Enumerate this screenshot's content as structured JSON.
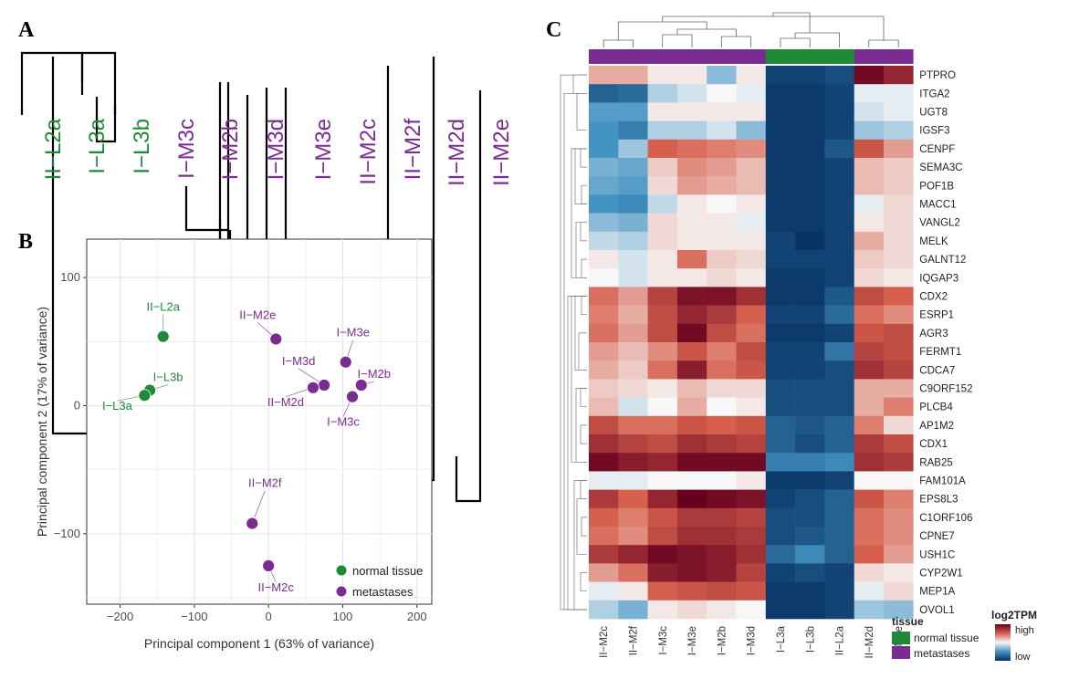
{
  "panels": {
    "a": "A",
    "b": "B",
    "c": "C"
  },
  "colors": {
    "normal": "#1e8a38",
    "metastases": "#7b2c90",
    "link": "#000000",
    "grid": "#e6e6e6",
    "axis_text": "#4d4d4d"
  },
  "chart_data": [
    {
      "id": "dendrogram_A",
      "type": "dendrogram",
      "leaves": [
        "II−L2a",
        "I−L3a",
        "I−L3b",
        "I−M3c",
        "I−M2b",
        "I−M3d",
        "I−M3e",
        "II−M2c",
        "II−M2f",
        "II−M2d",
        "II−M2e"
      ],
      "leaf_groups": [
        "normal",
        "normal",
        "normal",
        "metastases",
        "metastases",
        "metastases",
        "metastases",
        "metastases",
        "metastases",
        "metastases",
        "metastases"
      ]
    },
    {
      "id": "pca_B",
      "type": "scatter",
      "xlabel": "Principal component 1 (63% of variance)",
      "ylabel": "Principal component 2 (17% of variance)",
      "xlim": [
        -245,
        220
      ],
      "ylim": [
        -155,
        130
      ],
      "xticks": [
        -200,
        -100,
        0,
        100,
        200
      ],
      "yticks": [
        -100,
        0,
        100
      ],
      "points": [
        {
          "label": "II−L2a",
          "x": -142,
          "y": 54,
          "group": "normal"
        },
        {
          "label": "I−L3b",
          "x": -160,
          "y": 12,
          "group": "normal"
        },
        {
          "label": "I−L3a",
          "x": -167,
          "y": 8,
          "group": "normal"
        },
        {
          "label": "II−M2e",
          "x": 10,
          "y": 52,
          "group": "metastases"
        },
        {
          "label": "I−M3e",
          "x": 104,
          "y": 34,
          "group": "metastases"
        },
        {
          "label": "I−M3d",
          "x": 75,
          "y": 16,
          "group": "metastases"
        },
        {
          "label": "II−M2d",
          "x": 60,
          "y": 14,
          "group": "metastases"
        },
        {
          "label": "I−M2b",
          "x": 125,
          "y": 16,
          "group": "metastases"
        },
        {
          "label": "I−M3c",
          "x": 113,
          "y": 7,
          "group": "metastases"
        },
        {
          "label": "II−M2f",
          "x": -22,
          "y": -92,
          "group": "metastases"
        },
        {
          "label": "II−M2c",
          "x": 0,
          "y": -125,
          "group": "metastases"
        }
      ],
      "legend": {
        "position": "bottom-right",
        "entries": [
          {
            "label": "normal tissue",
            "group": "normal"
          },
          {
            "label": "metastases",
            "group": "metastases"
          }
        ]
      }
    },
    {
      "id": "heatmap_C",
      "type": "heatmap",
      "columns": [
        "II−M2c",
        "II−M2f",
        "I−M3c",
        "I−M3e",
        "I−M2b",
        "I−M3d",
        "I−L3a",
        "I−L3b",
        "II−L2a",
        "II−M2d",
        "II−M2e"
      ],
      "column_groups": [
        "metastases",
        "metastases",
        "metastases",
        "metastases",
        "metastases",
        "metastases",
        "normal",
        "normal",
        "normal",
        "metastases",
        "metastases"
      ],
      "rows": [
        "PTPRO",
        "ITGA2",
        "UGT8",
        "IGSF3",
        "CENPF",
        "SEMA3C",
        "POF1B",
        "MACC1",
        "VANGL2",
        "MELK",
        "GALNT12",
        "IQGAP3",
        "CDX2",
        "ESRP1",
        "AGR3",
        "FERMT1",
        "CDCA7",
        "C9ORF152",
        "PLCB4",
        "AP1M2",
        "CDX1",
        "RAB25",
        "FAM101A",
        "EPS8L3",
        "C1ORF106",
        "CPNE7",
        "USH1C",
        "CYP2W1",
        "MEP1A",
        "OVOL1"
      ],
      "scale": "relative log2TPM: -1 = low (blue), 0 = neutral (white), 1 = high (red)",
      "values": [
        [
          0.25,
          0.25,
          0.05,
          0.05,
          -0.3,
          0.05,
          -0.9,
          -0.9,
          -0.85,
          0.95,
          0.8
        ],
        [
          -0.75,
          -0.7,
          -0.2,
          -0.1,
          0.0,
          -0.05,
          -0.95,
          -0.95,
          -0.9,
          -0.05,
          -0.05
        ],
        [
          -0.45,
          -0.45,
          0.05,
          0.05,
          0.05,
          0.05,
          -0.95,
          -0.95,
          -0.9,
          -0.1,
          -0.05
        ],
        [
          -0.5,
          -0.6,
          -0.2,
          -0.2,
          -0.1,
          -0.3,
          -0.95,
          -0.95,
          -0.9,
          -0.25,
          -0.2
        ],
        [
          -0.5,
          -0.25,
          0.5,
          0.45,
          0.4,
          0.35,
          -0.95,
          -0.95,
          -0.8,
          0.55,
          0.3
        ],
        [
          -0.35,
          -0.4,
          0.15,
          0.35,
          0.3,
          0.2,
          -0.95,
          -0.95,
          -0.9,
          0.2,
          0.15
        ],
        [
          -0.4,
          -0.45,
          0.1,
          0.3,
          0.25,
          0.2,
          -0.95,
          -0.95,
          -0.9,
          0.2,
          0.15
        ],
        [
          -0.5,
          -0.55,
          -0.15,
          0.05,
          0.0,
          0.05,
          -0.95,
          -0.95,
          -0.9,
          -0.05,
          0.1
        ],
        [
          -0.3,
          -0.35,
          0.1,
          0.05,
          0.05,
          -0.05,
          -0.95,
          -0.95,
          -0.9,
          0.05,
          0.1
        ],
        [
          -0.15,
          -0.2,
          0.1,
          0.05,
          0.05,
          0.05,
          -0.9,
          -0.98,
          -0.9,
          0.25,
          0.1
        ],
        [
          0.05,
          -0.1,
          0.05,
          0.45,
          0.15,
          0.1,
          -0.9,
          -0.9,
          -0.9,
          0.15,
          0.1
        ],
        [
          0.0,
          -0.1,
          0.05,
          0.05,
          0.1,
          0.05,
          -0.95,
          -0.95,
          -0.9,
          0.1,
          0.05
        ],
        [
          0.45,
          0.3,
          0.65,
          0.9,
          0.9,
          0.75,
          -0.95,
          -0.95,
          -0.8,
          0.6,
          0.5
        ],
        [
          0.4,
          0.25,
          0.6,
          0.8,
          0.7,
          0.5,
          -0.9,
          -0.9,
          -0.7,
          0.45,
          0.35
        ],
        [
          0.45,
          0.3,
          0.6,
          0.95,
          0.6,
          0.45,
          -0.95,
          -0.95,
          -0.9,
          0.55,
          0.6
        ],
        [
          0.3,
          0.2,
          0.35,
          0.55,
          0.4,
          0.6,
          -0.9,
          -0.9,
          -0.65,
          0.65,
          0.6
        ],
        [
          0.25,
          0.15,
          0.45,
          0.85,
          0.45,
          0.55,
          -0.9,
          -0.9,
          -0.85,
          0.75,
          0.65
        ],
        [
          0.15,
          0.1,
          0.05,
          0.2,
          0.1,
          0.1,
          -0.85,
          -0.85,
          -0.85,
          0.25,
          0.25
        ],
        [
          0.2,
          -0.1,
          0.0,
          0.25,
          0.0,
          0.05,
          -0.85,
          -0.85,
          -0.85,
          0.25,
          0.4
        ],
        [
          0.6,
          0.45,
          0.45,
          0.55,
          0.5,
          0.55,
          -0.75,
          -0.8,
          -0.75,
          0.4,
          0.1
        ],
        [
          0.75,
          0.65,
          0.6,
          0.75,
          0.7,
          0.65,
          -0.75,
          -0.85,
          -0.75,
          0.7,
          0.6
        ],
        [
          0.95,
          0.85,
          0.8,
          0.95,
          0.95,
          0.95,
          -0.6,
          -0.6,
          -0.55,
          0.75,
          0.7
        ],
        [
          -0.05,
          -0.05,
          0.0,
          0.0,
          0.0,
          0.05,
          -0.95,
          -0.95,
          -0.9,
          0.0,
          0.0
        ],
        [
          0.7,
          0.5,
          0.8,
          1.0,
          0.95,
          0.9,
          -0.9,
          -0.85,
          -0.75,
          0.55,
          0.4
        ],
        [
          0.5,
          0.4,
          0.55,
          0.7,
          0.7,
          0.65,
          -0.85,
          -0.85,
          -0.75,
          0.45,
          0.35
        ],
        [
          0.45,
          0.35,
          0.6,
          0.75,
          0.75,
          0.7,
          -0.85,
          -0.8,
          -0.75,
          0.45,
          0.35
        ],
        [
          0.7,
          0.8,
          0.95,
          0.9,
          0.85,
          0.75,
          -0.7,
          -0.55,
          -0.75,
          0.5,
          0.3
        ],
        [
          0.3,
          0.45,
          0.85,
          0.9,
          0.85,
          0.65,
          -0.9,
          -0.85,
          -0.9,
          0.1,
          0.05
        ],
        [
          -0.05,
          0.05,
          0.5,
          0.55,
          0.6,
          0.55,
          -0.95,
          -0.95,
          -0.9,
          -0.05,
          0.1
        ],
        [
          -0.2,
          -0.35,
          0.05,
          0.1,
          0.05,
          0.0,
          -0.95,
          -0.95,
          -0.9,
          -0.25,
          -0.3
        ]
      ],
      "legend_tissue": {
        "title": "tissue",
        "entries": [
          {
            "label": "normal tissue",
            "group": "normal"
          },
          {
            "label": "metastases",
            "group": "metastases"
          }
        ]
      },
      "legend_scale": {
        "title": "log2TPM",
        "high": "high",
        "low": "low"
      }
    }
  ]
}
